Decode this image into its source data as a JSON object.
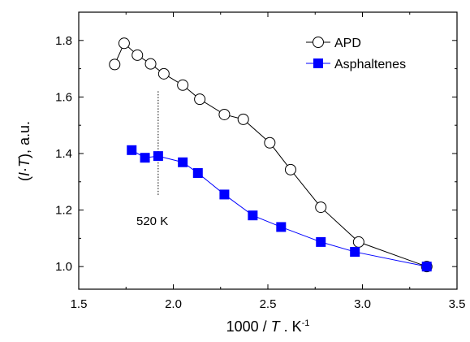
{
  "chart_data": {
    "type": "line",
    "title": "",
    "xlabel": {
      "prefix": "1000 / ",
      "var": "T",
      "mid": " . K",
      "sup": "-1"
    },
    "ylabel": {
      "open": "(",
      "var1": "I",
      "dot": "·",
      "var2": "T",
      "close": ")",
      "rest": ", a.u."
    },
    "xlim": [
      1.5,
      3.5
    ],
    "ylim": [
      0.92,
      1.9
    ],
    "xticks": [
      1.5,
      2.0,
      2.5,
      3.0,
      3.5
    ],
    "xtick_labels": [
      "1.5",
      "2.0",
      "2.5",
      "3.0",
      "3.5"
    ],
    "yticks": [
      1.0,
      1.2,
      1.4,
      1.6,
      1.8
    ],
    "ytick_labels": [
      "1.0",
      "1.2",
      "1.4",
      "1.6",
      "1.8"
    ],
    "grid": false,
    "legend_position": "top-right",
    "series": [
      {
        "name": "APD",
        "color": "#000000",
        "marker": "open-circle",
        "x": [
          1.69,
          1.74,
          1.81,
          1.88,
          1.95,
          2.05,
          2.14,
          2.27,
          2.37,
          2.51,
          2.62,
          2.78,
          2.98,
          3.34
        ],
        "y": [
          1.715,
          1.79,
          1.748,
          1.717,
          1.682,
          1.642,
          1.592,
          1.538,
          1.521,
          1.438,
          1.343,
          1.21,
          1.087,
          1.0
        ]
      },
      {
        "name": "Asphaltenes",
        "color": "#0000ff",
        "marker": "filled-square",
        "x": [
          1.78,
          1.85,
          1.92,
          2.05,
          2.13,
          2.27,
          2.42,
          2.57,
          2.78,
          2.96,
          3.34
        ],
        "y": [
          1.412,
          1.385,
          1.391,
          1.369,
          1.331,
          1.255,
          1.181,
          1.14,
          1.087,
          1.052,
          1.0
        ]
      }
    ],
    "annotations": [
      {
        "text": "520 K",
        "x": 1.92,
        "line_y": [
          1.25,
          1.62
        ]
      }
    ]
  }
}
